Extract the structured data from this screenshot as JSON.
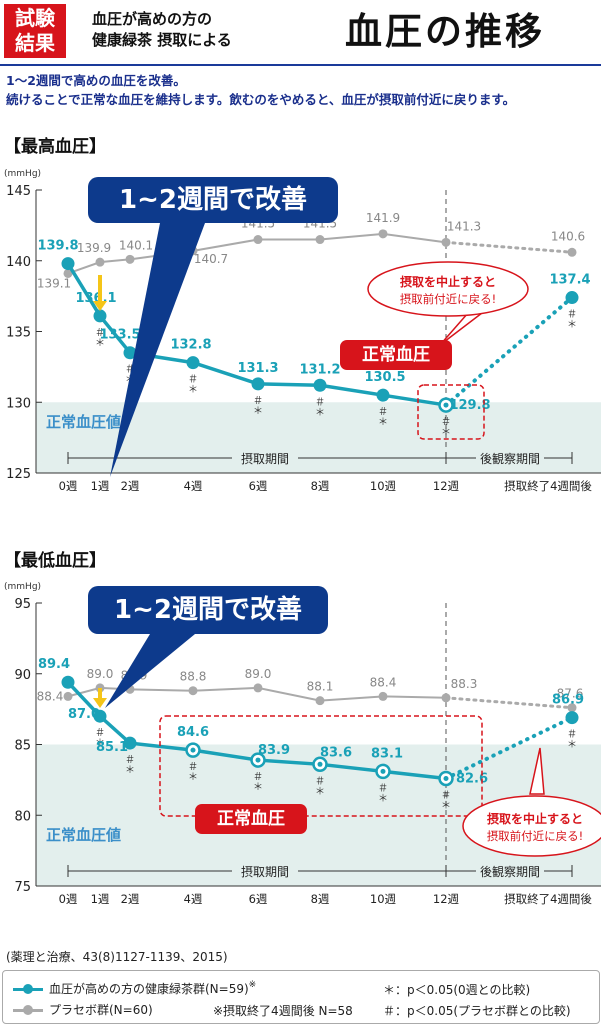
{
  "header": {
    "badge": [
      "試験",
      "結果"
    ],
    "subtitle": [
      "血圧が高めの方の",
      "健康緑茶 摂取による"
    ],
    "title": "血圧の推移"
  },
  "intro": [
    "1～2週間で高めの血圧を改善。",
    "続けることで正常な血圧を維持します。飲むのをやめると、血圧が摂取前付近に戻ります。"
  ],
  "colors": {
    "tea": "#1aa1b7",
    "placebo": "#aaaaaa",
    "normal_band": "#e3efed",
    "normal_text": "#3b8fc9",
    "callout": "#0d3a8c",
    "red": "#d7141b",
    "arrow": "#f5c518"
  },
  "chart_data": [
    {
      "type": "line",
      "title": "【最高血圧】",
      "unit": "(mmHg)",
      "ylim": [
        125,
        145
      ],
      "yticks": [
        125,
        130,
        135,
        140,
        145
      ],
      "xlabels": [
        "0週",
        "1週",
        "2週",
        "4週",
        "6週",
        "8週",
        "10週",
        "12週",
        "摂取終了4週間後"
      ],
      "x": [
        0,
        1,
        2,
        4,
        6,
        8,
        10,
        12,
        16
      ],
      "series": [
        {
          "name": "血圧が高めの方の健康緑茶群(N=59)",
          "values": [
            139.8,
            136.1,
            133.5,
            132.8,
            131.3,
            131.2,
            130.5,
            129.8,
            137.4
          ],
          "labels": [
            "139.8",
            "136.1",
            "133.5",
            "132.8",
            "131.3",
            "131.2",
            "130.5",
            "129.8",
            "137.4"
          ]
        },
        {
          "name": "プラセボ群(N=60)",
          "values": [
            139.1,
            139.9,
            140.1,
            140.7,
            141.5,
            141.5,
            141.9,
            141.3,
            140.6
          ],
          "labels": [
            "139.1",
            "139.9",
            "140.1",
            "140.7",
            "141.5",
            "141.5",
            "141.9",
            "141.3",
            "140.6"
          ]
        }
      ],
      "marks": [
        "",
        "＃\n＊",
        "＃\n＊",
        "＃\n＊",
        "＃\n＊",
        "＃\n＊",
        "＃\n＊",
        "＃\n＊",
        "＃\n＊"
      ],
      "normal_band": [
        125,
        130
      ],
      "normal_label": "正常血圧値",
      "period_intake": "摂取期間",
      "period_follow": "後観察期間",
      "callout": "1~2週間で改善",
      "normal_tag": "正常血圧",
      "bubble": [
        "摂取を中止すると",
        "摂取前付近に戻る!"
      ]
    },
    {
      "type": "line",
      "title": "【最低血圧】",
      "unit": "(mmHg)",
      "ylim": [
        75,
        95
      ],
      "yticks": [
        75,
        80,
        85,
        90,
        95
      ],
      "xlabels": [
        "0週",
        "1週",
        "2週",
        "4週",
        "6週",
        "8週",
        "10週",
        "12週",
        "摂取終了4週間後"
      ],
      "x": [
        0,
        1,
        2,
        4,
        6,
        8,
        10,
        12,
        16
      ],
      "series": [
        {
          "name": "血圧が高めの方の健康緑茶群(N=59)",
          "values": [
            89.4,
            87.0,
            85.1,
            84.6,
            83.9,
            83.6,
            83.1,
            82.6,
            86.9
          ],
          "labels": [
            "89.4",
            "87.0",
            "85.1",
            "84.6",
            "83.9",
            "83.6",
            "83.1",
            "82.6",
            "86.9"
          ]
        },
        {
          "name": "プラセボ群(N=60)",
          "values": [
            88.4,
            89.0,
            88.9,
            88.8,
            89.0,
            88.1,
            88.4,
            88.3,
            87.6
          ],
          "labels": [
            "88.4",
            "89.0",
            "88.9",
            "88.8",
            "89.0",
            "88.1",
            "88.4",
            "88.3",
            "87.6"
          ]
        }
      ],
      "marks": [
        "",
        "＃\n＊",
        "＃\n＊",
        "＃\n＊",
        "＃\n＊",
        "＃\n＊",
        "＃\n＊",
        "＃\n＊",
        "＃\n＊"
      ],
      "normal_band": [
        75,
        85
      ],
      "normal_label": "正常血圧値",
      "period_intake": "摂取期間",
      "period_follow": "後観察期間",
      "callout": "1~2週間で改善",
      "normal_tag": "正常血圧",
      "bubble": [
        "摂取を中止すると",
        "摂取前付近に戻る!"
      ]
    }
  ],
  "source": "(薬理と治療、43(8)1127-1139、2015)",
  "legend": {
    "tea": "血圧が高めの方の健康緑茶群(N=59)",
    "tea_sup": "※",
    "placebo": "プラセボ群(N=60)",
    "note_ast": "※摂取終了4週間後 N=58",
    "sig1": "＊：p＜0.05(0週との比較)",
    "sig2": "＃：p＜0.05(プラセボ群との比較)"
  }
}
